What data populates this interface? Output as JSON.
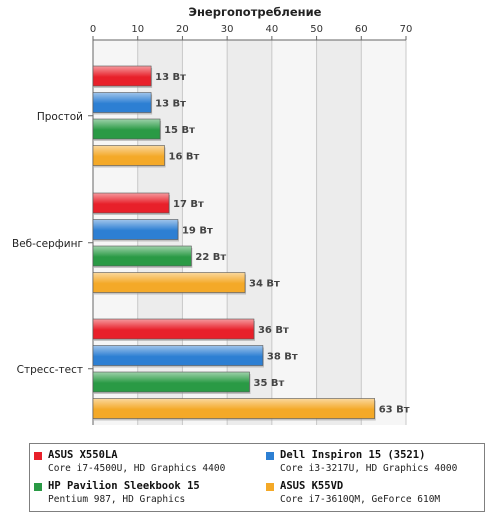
{
  "chart_data": {
    "type": "bar",
    "orientation": "horizontal",
    "title": "Энергопотребление",
    "xlim": [
      0,
      70
    ],
    "xticks": [
      "0",
      "10",
      "20",
      "30",
      "40",
      "50",
      "60",
      "70"
    ],
    "categories": [
      "Простой",
      "Веб-серфинг",
      "Стресс-тест"
    ],
    "value_suffix": " Вт",
    "grid": true,
    "legend_position": "bottom",
    "series": [
      {
        "name": "ASUS X550LA",
        "desc": "Core i7-4500U, HD Graphics 4400",
        "color": "#e8202a",
        "values": [
          13,
          17,
          36
        ]
      },
      {
        "name": "Dell Inspiron 15 (3521)",
        "desc": "Core i3-3217U, HD Graphics 4000",
        "color": "#2d7fd3",
        "values": [
          13,
          19,
          38
        ]
      },
      {
        "name": "HP Pavilion Sleekbook 15",
        "desc": "Pentium 987, HD Graphics",
        "color": "#2a9a45",
        "values": [
          15,
          22,
          35
        ]
      },
      {
        "name": "ASUS K55VD",
        "desc": "Core i7-3610QM, GeForce 610M",
        "color": "#f4a928",
        "values": [
          16,
          34,
          63
        ]
      }
    ]
  }
}
